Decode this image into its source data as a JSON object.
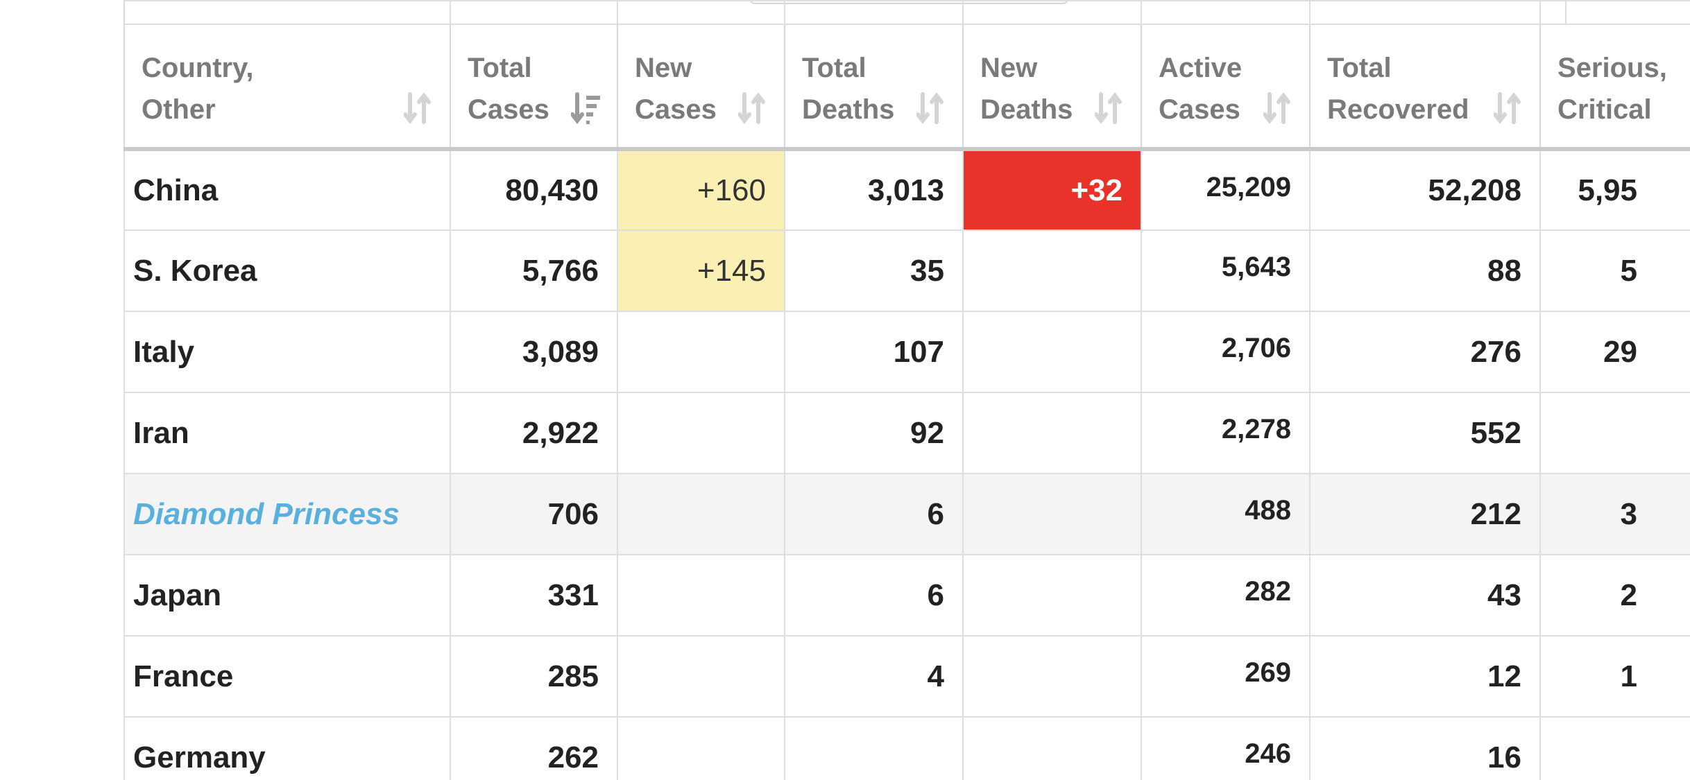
{
  "columns": {
    "country": [
      "Country,",
      "Other"
    ],
    "total_cases": [
      "Total",
      "Cases"
    ],
    "new_cases": [
      "New",
      "Cases"
    ],
    "total_deaths": [
      "Total",
      "Deaths"
    ],
    "new_deaths": [
      "New",
      "Deaths"
    ],
    "active_cases": [
      "Active",
      "Cases"
    ],
    "total_recovered": [
      "Total",
      "Recovered"
    ],
    "serious_critical": [
      "Serious,",
      "Critical"
    ]
  },
  "sort": {
    "sorted_column": "total_cases",
    "icon": "sort-descending-icon",
    "other_icon": "sort-both-icon"
  },
  "colors": {
    "new_cases_highlight": "#fbf0b3",
    "new_deaths_highlight": "#e8322a",
    "ship_link": "#5ab0dd",
    "header_text": "#7a7a7a"
  },
  "rows": [
    {
      "country": "China",
      "total_cases": "80,430",
      "new_cases": "+160",
      "total_deaths": "3,013",
      "new_deaths": "+32",
      "active_cases": "25,209",
      "total_recovered": "52,208",
      "serious_critical": "5,95"
    },
    {
      "country": "S. Korea",
      "total_cases": "5,766",
      "new_cases": "+145",
      "total_deaths": "35",
      "new_deaths": "",
      "active_cases": "5,643",
      "total_recovered": "88",
      "serious_critical": "5"
    },
    {
      "country": "Italy",
      "total_cases": "3,089",
      "new_cases": "",
      "total_deaths": "107",
      "new_deaths": "",
      "active_cases": "2,706",
      "total_recovered": "276",
      "serious_critical": "29"
    },
    {
      "country": "Iran",
      "total_cases": "2,922",
      "new_cases": "",
      "total_deaths": "92",
      "new_deaths": "",
      "active_cases": "2,278",
      "total_recovered": "552",
      "serious_critical": ""
    },
    {
      "country": "Diamond Princess",
      "total_cases": "706",
      "new_cases": "",
      "total_deaths": "6",
      "new_deaths": "",
      "active_cases": "488",
      "total_recovered": "212",
      "serious_critical": "3"
    },
    {
      "country": "Japan",
      "total_cases": "331",
      "new_cases": "",
      "total_deaths": "6",
      "new_deaths": "",
      "active_cases": "282",
      "total_recovered": "43",
      "serious_critical": "2"
    },
    {
      "country": "France",
      "total_cases": "285",
      "new_cases": "",
      "total_deaths": "4",
      "new_deaths": "",
      "active_cases": "269",
      "total_recovered": "12",
      "serious_critical": "1"
    },
    {
      "country": "Germany",
      "total_cases": "262",
      "new_cases": "",
      "total_deaths": "",
      "new_deaths": "",
      "active_cases": "246",
      "total_recovered": "16",
      "serious_critical": ""
    }
  ]
}
